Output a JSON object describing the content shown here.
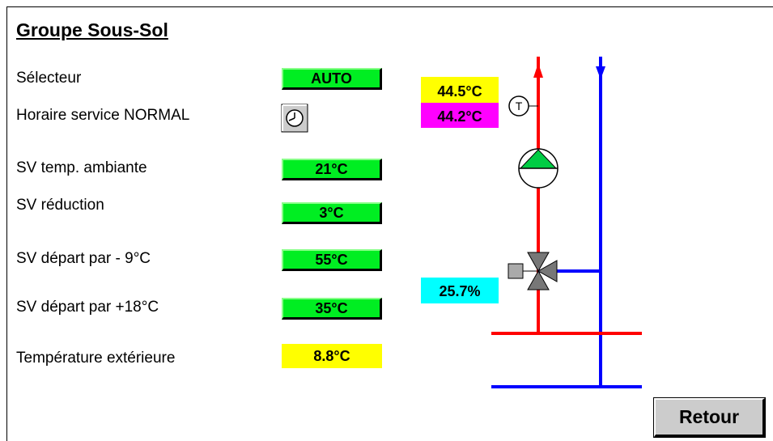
{
  "header": {
    "title": "Groupe Sous-Sol"
  },
  "rows": [
    {
      "label": "Sélecteur",
      "value": "AUTO"
    },
    {
      "label": "Horaire service NORMAL"
    },
    {
      "label": "SV temp. ambiante",
      "value": "21°C"
    },
    {
      "label": "SV réduction",
      "value": "3°C"
    },
    {
      "label": "SV départ par - 9°C",
      "value": "55°C"
    },
    {
      "label": "SV départ par +18°C",
      "value": "35°C"
    },
    {
      "label": "Température extérieure",
      "value": "8.8°C"
    }
  ],
  "diagram": {
    "supply_temp": "44.5°C",
    "return_temp": "44.2°C",
    "valve_position": "25.7%",
    "sensor": "T"
  },
  "footer": {
    "button": "Retour"
  }
}
